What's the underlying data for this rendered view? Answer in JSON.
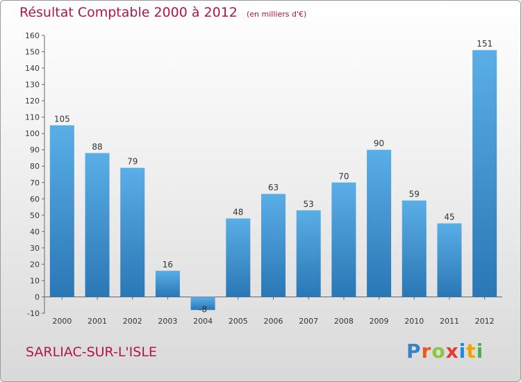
{
  "title": "Résultat Comptable 2000 à 2012",
  "subtitle": "(en milliers d'€)",
  "commune": "SARLIAC-SUR-L'ISLE",
  "brand": {
    "text": "Proxiti",
    "letters": [
      "P",
      "r",
      "o",
      "x",
      "i",
      "t",
      "i"
    ],
    "colors": [
      "#3b82c4",
      "#e95a1c",
      "#8cc63f",
      "#e53935",
      "#1e88e5",
      "#f4a000",
      "#4caf50"
    ]
  },
  "chart_data": {
    "type": "bar",
    "title": "Résultat Comptable 2000 à 2012",
    "subtitle": "(en milliers d'€)",
    "categories": [
      "2000",
      "2001",
      "2002",
      "2003",
      "2004",
      "2005",
      "2006",
      "2007",
      "2008",
      "2009",
      "2010",
      "2011",
      "2012"
    ],
    "values": [
      105,
      88,
      79,
      16,
      -8,
      48,
      63,
      53,
      70,
      90,
      59,
      45,
      151
    ],
    "labels": [
      "105",
      "88",
      "79",
      "16",
      "-8",
      "48",
      "63",
      "53",
      "70",
      "90",
      "59",
      "45",
      "151"
    ],
    "ylim": [
      -10,
      160
    ],
    "yticks": [
      -10,
      0,
      10,
      20,
      30,
      40,
      50,
      60,
      70,
      80,
      90,
      100,
      110,
      120,
      130,
      140,
      150,
      160
    ],
    "grid": false,
    "colors": {
      "bar_light": "#5aaee6",
      "bar_dark": "#2a77b5",
      "axis": "#666666",
      "text": "#333333"
    }
  }
}
